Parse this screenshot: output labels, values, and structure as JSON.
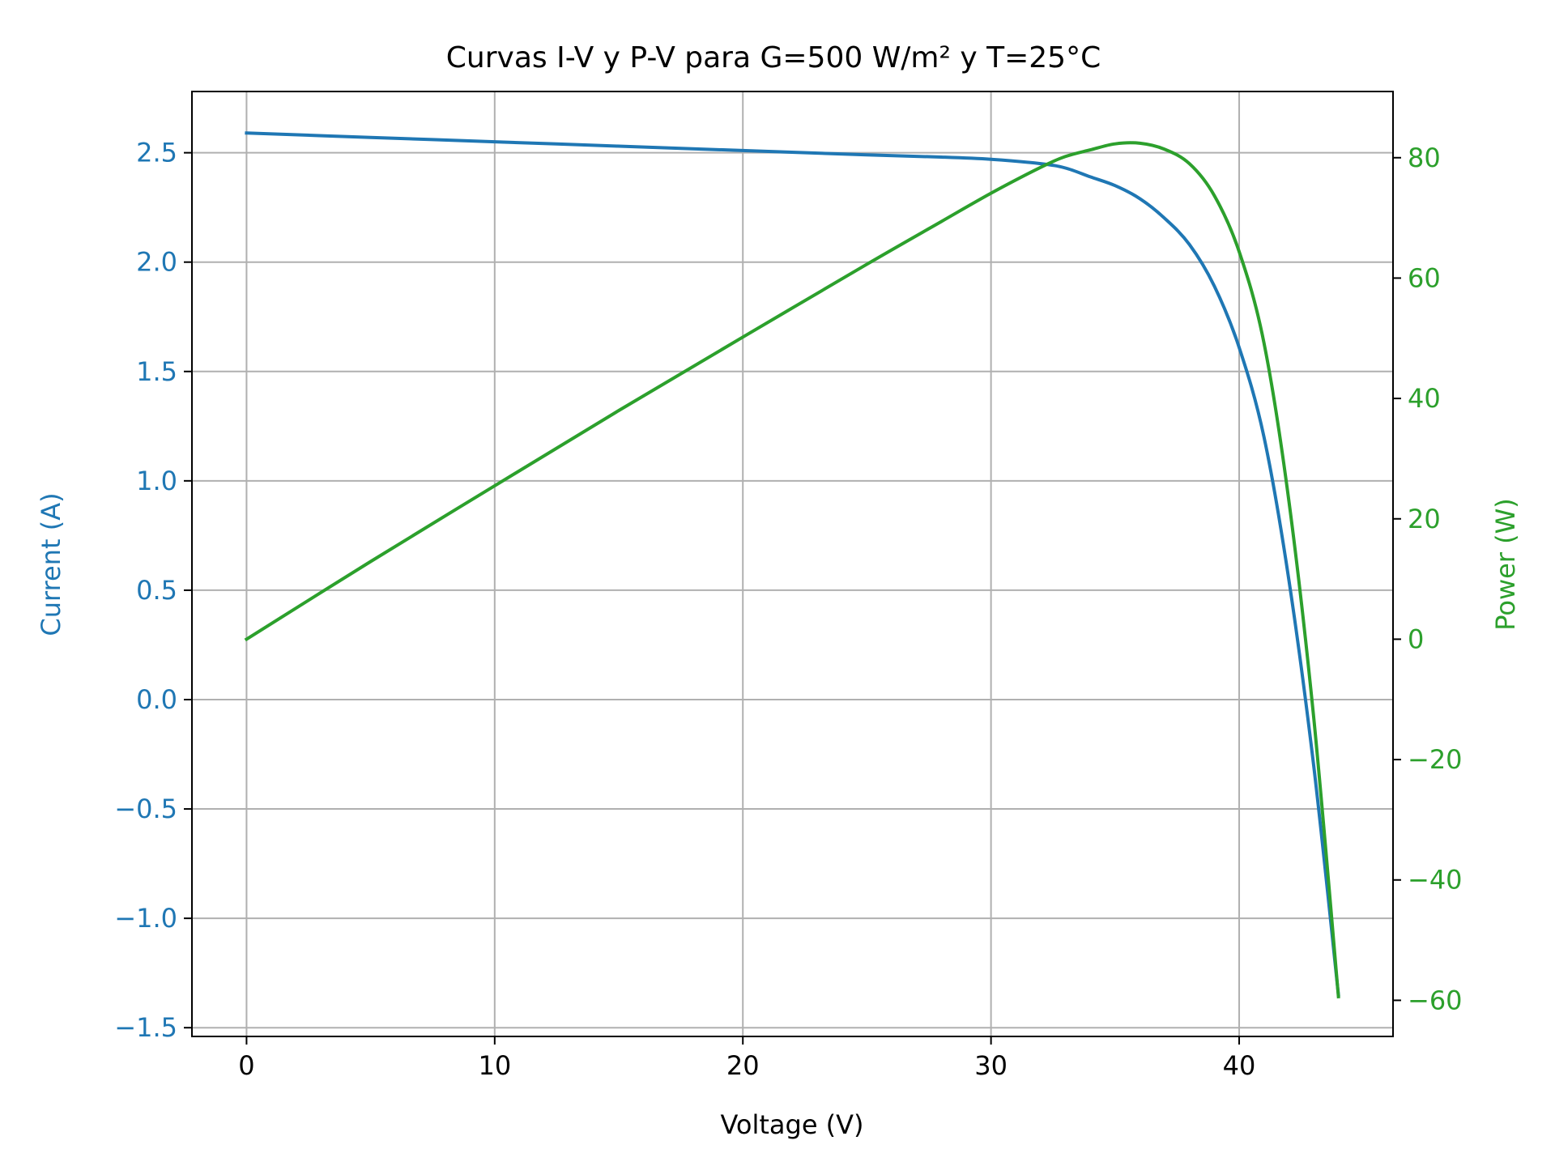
{
  "chart_data": {
    "type": "line",
    "title": "Curvas I-V y P-V para G=500 W/m² y T=25°C",
    "xlabel": "Voltage (V)",
    "ylabel_left": "Current (A)",
    "ylabel_right": "Power (W)",
    "xlim": [
      -2.2,
      46.2
    ],
    "ylim_left": [
      -1.54,
      2.78
    ],
    "ylim_right": [
      -66.0,
      91.0
    ],
    "grid": true,
    "x_ticks": [
      "0",
      "10",
      "20",
      "30",
      "40"
    ],
    "y_left_ticks": [
      "−1.5",
      "−1.0",
      "−0.5",
      "0.0",
      "0.5",
      "1.0",
      "1.5",
      "2.0",
      "2.5"
    ],
    "y_right_ticks": [
      "−60",
      "−40",
      "−20",
      "0",
      "20",
      "40",
      "60",
      "80"
    ],
    "colors": {
      "current": "#1f77b4",
      "power": "#2ca02c"
    },
    "series": [
      {
        "axis": "left",
        "color": "#1f77b4",
        "x": [
          0,
          5,
          10,
          15,
          20,
          25,
          28,
          30,
          32,
          33,
          34,
          35,
          36,
          37,
          38,
          39,
          40,
          41,
          42,
          43,
          44
        ],
        "values": [
          2.59,
          2.57,
          2.55,
          2.53,
          2.51,
          2.49,
          2.48,
          2.47,
          2.45,
          2.43,
          2.39,
          2.35,
          2.29,
          2.2,
          2.08,
          1.89,
          1.61,
          1.2,
          0.55,
          -0.3,
          -1.35
        ]
      },
      {
        "axis": "right",
        "color": "#2ca02c",
        "x": [
          0,
          5,
          10,
          15,
          20,
          25,
          28,
          30,
          32,
          33,
          34,
          35,
          36,
          37,
          38,
          39,
          40,
          41,
          42,
          43,
          44
        ],
        "values": [
          0,
          12.9,
          25.5,
          38.0,
          50.2,
          62.3,
          69.4,
          74.1,
          78.4,
          80.2,
          81.3,
          82.3,
          82.4,
          81.4,
          79.0,
          73.7,
          64.4,
          49.2,
          23.1,
          -12.9,
          -59.4
        ]
      }
    ]
  }
}
